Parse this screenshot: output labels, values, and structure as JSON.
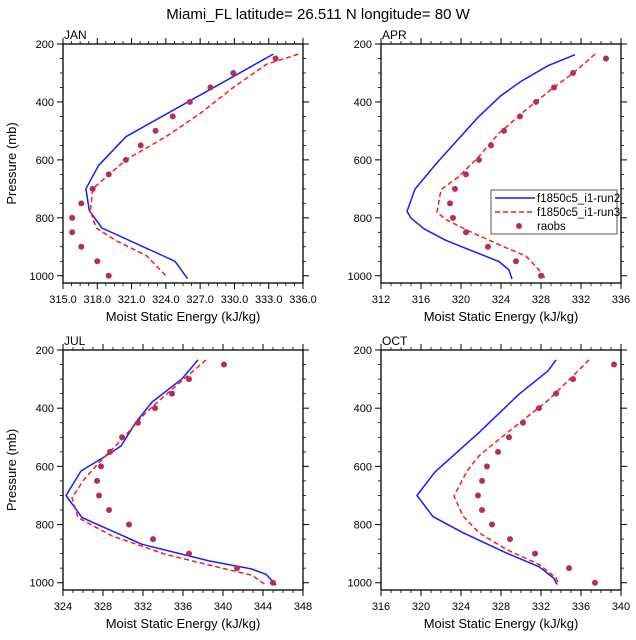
{
  "title": "Miami_FL  latitude= 26.511 N longitude= 80 W",
  "legend": {
    "entries": [
      {
        "label": "f1850c5_i1-run2",
        "style": "solid",
        "color": "#1a1aff"
      },
      {
        "label": "f1850c5_i1-run3",
        "style": "dashed",
        "color": "#ff1a1a"
      },
      {
        "label": "raobs",
        "style": "marker",
        "color": "#b0305a"
      }
    ],
    "placement": "inside APR panel, right-center"
  },
  "colors": {
    "run2": "#1a1aff",
    "run3": "#ff1a1a",
    "raobs": "#b0305a",
    "axes": "#000000"
  },
  "chart_data": [
    {
      "type": "line",
      "panel": "JAN",
      "title": "JAN",
      "xlabel": "Moist Static Energy (kJ/kg)",
      "ylabel": "Pressure (mb)",
      "xlim": [
        315,
        336
      ],
      "ylim": [
        1025,
        200
      ],
      "y_inverted": true,
      "xticks": [
        315,
        318,
        321,
        324,
        327,
        330,
        333,
        336
      ],
      "xtick_labels": [
        "315.0",
        "318.0",
        "321.0",
        "324.0",
        "327.0",
        "330.0",
        "333.0",
        "336.0"
      ],
      "yticks": [
        200,
        400,
        600,
        800,
        1000
      ],
      "ytick_labels": [
        "200",
        "400",
        "600",
        "800",
        "1000"
      ],
      "series": [
        {
          "name": "f1850c5_i1-run2",
          "style": "solid",
          "x": [
            333.4,
            320.5,
            318.1,
            317.0,
            317.3,
            318.4,
            323.7,
            324.8,
            325.9
          ],
          "p": [
            235,
            520,
            620,
            700,
            775,
            835,
            930,
            950,
            1010
          ]
        },
        {
          "name": "f1850c5_i1-run3",
          "style": "dashed",
          "x": [
            335.6,
            332.8,
            329.9,
            327.0,
            324.0,
            320.5,
            317.6,
            317.4,
            317.9,
            319.7,
            322.3,
            324.0
          ],
          "p": [
            235,
            270,
            350,
            440,
            520,
            600,
            700,
            775,
            835,
            880,
            930,
            1000
          ]
        },
        {
          "name": "raobs",
          "style": "marker",
          "x": [
            333.6,
            329.9,
            327.9,
            326.1,
            324.6,
            323.1,
            321.8,
            320.5,
            319.0,
            317.6,
            316.6,
            315.8,
            315.8,
            316.6,
            318.0,
            319.0
          ],
          "p": [
            250,
            300,
            350,
            400,
            450,
            500,
            550,
            600,
            650,
            700,
            750,
            800,
            850,
            900,
            950,
            1000
          ]
        }
      ]
    },
    {
      "type": "line",
      "panel": "APR",
      "title": "APR",
      "xlabel": "Moist Static Energy (kJ/kg)",
      "ylabel": "",
      "xlim": [
        312,
        336
      ],
      "ylim": [
        1025,
        200
      ],
      "y_inverted": true,
      "xticks": [
        312,
        316,
        320,
        324,
        328,
        332,
        336
      ],
      "xtick_labels": [
        "312",
        "316",
        "320",
        "324",
        "328",
        "332",
        "336"
      ],
      "yticks": [
        200,
        400,
        600,
        800,
        1000
      ],
      "ytick_labels": [
        "200",
        "400",
        "600",
        "800",
        "1000"
      ],
      "series": [
        {
          "name": "f1850c5_i1-run2",
          "style": "solid",
          "x": [
            331.4,
            328.7,
            326.0,
            324.0,
            321.7,
            317.5,
            315.4,
            314.6,
            315.0,
            316.3,
            318.5,
            323.8,
            324.8,
            325.1
          ],
          "p": [
            237,
            275,
            329,
            378,
            453,
            614,
            701,
            778,
            801,
            838,
            878,
            951,
            980,
            1012
          ]
        },
        {
          "name": "f1850c5_i1-run3",
          "style": "dashed",
          "x": [
            333.4,
            331.2,
            329.2,
            326.5,
            323.8,
            321.8,
            319.8,
            318.0,
            317.6,
            318.5,
            320.8,
            324.5,
            326.5,
            328.2,
            328.4
          ],
          "p": [
            235,
            301,
            352,
            427,
            508,
            588,
            657,
            703,
            781,
            806,
            846,
            903,
            932,
            995,
            1012
          ]
        },
        {
          "name": "raobs",
          "style": "marker",
          "x": [
            334.5,
            331.2,
            329.3,
            327.5,
            325.9,
            324.3,
            323.0,
            321.8,
            320.5,
            319.4,
            318.9,
            319.2,
            320.5,
            322.7,
            325.5,
            328.0
          ],
          "p": [
            250,
            300,
            350,
            400,
            450,
            500,
            550,
            600,
            650,
            700,
            750,
            800,
            850,
            900,
            950,
            1000
          ]
        }
      ]
    },
    {
      "type": "line",
      "panel": "JUL",
      "title": "JUL",
      "xlabel": "Moist Static Energy (kJ/kg)",
      "ylabel": "Pressure (mb)",
      "xlim": [
        324,
        348
      ],
      "ylim": [
        1025,
        200
      ],
      "y_inverted": true,
      "xticks": [
        324,
        328,
        332,
        336,
        340,
        344,
        348
      ],
      "xtick_labels": [
        "324",
        "328",
        "332",
        "336",
        "340",
        "344",
        "348"
      ],
      "yticks": [
        200,
        400,
        600,
        800,
        1000
      ],
      "ytick_labels": [
        "200",
        "400",
        "600",
        "800",
        "1000"
      ],
      "series": [
        {
          "name": "f1850c5_i1-run2",
          "style": "solid",
          "x": [
            337.5,
            335.9,
            332.9,
            331.3,
            329.8,
            328.3,
            325.8,
            324.3,
            325.9,
            331.9,
            338.6,
            342.8,
            344.3,
            345.3
          ],
          "p": [
            234,
            299,
            379,
            448,
            530,
            564,
            616,
            700,
            776,
            868,
            925,
            952,
            971,
            1008
          ]
        },
        {
          "name": "f1850c5_i1-run3",
          "style": "dashed",
          "x": [
            338.3,
            334.9,
            332.3,
            329.9,
            327.6,
            326.1,
            324.9,
            325.5,
            328.9,
            334.3,
            339.3,
            342.9,
            344.4
          ],
          "p": [
            234,
            335,
            415,
            507,
            587,
            645,
            708,
            776,
            839,
            903,
            945,
            974,
            1011
          ]
        },
        {
          "name": "raobs",
          "style": "marker",
          "x": [
            340.1,
            336.6,
            334.9,
            333.2,
            331.5,
            329.9,
            328.7,
            327.8,
            327.4,
            327.6,
            328.6,
            330.6,
            333.0,
            336.6,
            341.4,
            345.0
          ],
          "p": [
            250,
            300,
            350,
            400,
            450,
            500,
            550,
            600,
            650,
            700,
            750,
            800,
            850,
            900,
            950,
            1000
          ]
        }
      ]
    },
    {
      "type": "line",
      "panel": "OCT",
      "title": "OCT",
      "xlabel": "Moist Static Energy (kJ/kg)",
      "ylabel": "",
      "xlim": [
        316,
        340
      ],
      "ylim": [
        1025,
        200
      ],
      "y_inverted": true,
      "xticks": [
        316,
        320,
        324,
        328,
        332,
        336,
        340
      ],
      "xtick_labels": [
        "316",
        "320",
        "324",
        "328",
        "332",
        "336",
        "340"
      ],
      "yticks": [
        200,
        400,
        600,
        800,
        1000
      ],
      "ytick_labels": [
        "200",
        "400",
        "600",
        "800",
        "1000"
      ],
      "series": [
        {
          "name": "f1850c5_i1-run2",
          "style": "solid",
          "x": [
            333.5,
            332.7,
            329.8,
            325.8,
            321.4,
            319.6,
            321.2,
            324.2,
            328.5,
            331.8,
            333.3,
            333.6
          ],
          "p": [
            234,
            272,
            352,
            484,
            619,
            700,
            773,
            828,
            897,
            945,
            985,
            1006
          ]
        },
        {
          "name": "f1850c5_i1-run3",
          "style": "dashed",
          "x": [
            336.8,
            335.2,
            332.8,
            330.5,
            327.8,
            325.8,
            324.6,
            323.3,
            324.2,
            325.8,
            328.5,
            331.8,
            333.5,
            333.8
          ],
          "p": [
            234,
            289,
            370,
            433,
            507,
            564,
            616,
            702,
            771,
            828,
            885,
            937,
            983,
            1006
          ]
        },
        {
          "name": "raobs",
          "style": "marker",
          "x": [
            339.3,
            335.2,
            333.5,
            331.8,
            330.2,
            328.8,
            327.7,
            326.6,
            326.1,
            325.7,
            326.1,
            327.1,
            328.9,
            331.4,
            334.8,
            337.4
          ],
          "p": [
            250,
            300,
            350,
            400,
            450,
            500,
            550,
            600,
            650,
            700,
            750,
            800,
            850,
            900,
            950,
            1000
          ]
        }
      ]
    }
  ]
}
